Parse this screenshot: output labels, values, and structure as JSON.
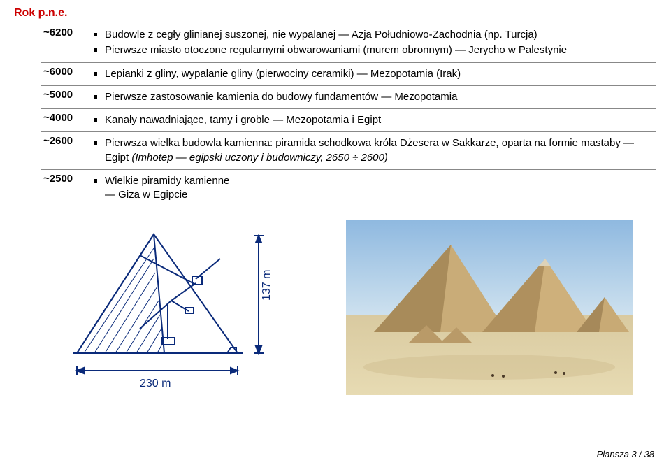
{
  "title": "Rok p.n.e.",
  "rows": [
    {
      "year": "~6200",
      "items": [
        "Budowle z cegły glinianej suszonej, nie wypalanej — Azja Południowo-Zachodnia (np. Turcja)",
        "Pierwsze miasto otoczone regularnymi obwarowaniami (murem obronnym) — Jerycho w Palestynie"
      ]
    },
    {
      "year": "~6000",
      "items": [
        "Lepianki z gliny, wypalanie gliny (pierwociny ceramiki) — Mezopotamia (Irak)"
      ]
    },
    {
      "year": "~5000",
      "items": [
        "Pierwsze zastosowanie kamienia do budowy fundamentów — Mezopotamia"
      ]
    },
    {
      "year": "~4000",
      "items": [
        "Kanały nawadniające, tamy i groble — Mezopotamia i Egipt"
      ]
    },
    {
      "year": "~2600",
      "items": [
        "Pierwsza wielka budowla kamienna: piramida schodkowa króla Dżesera w Sakkarze, oparta na formie mastaby — Egipt <span class=\"italic\">(Imhotep — egipski uczony i budowniczy, 2650 ÷ 2600)</span>"
      ]
    },
    {
      "year": "~2500",
      "items": [
        "Wielkie piramidy kamienne<br>— Giza w Egipcie"
      ]
    }
  ],
  "diagram": {
    "height_label": "137 m",
    "width_label": "230 m",
    "stroke": "#0a2a7a",
    "stroke_width": 2,
    "text_color": "#0a2a7a",
    "label_fontsize": 16
  },
  "photo": {
    "sky_color_top": "#9fc4e8",
    "sand_color": "#dccfa2",
    "pyramid_light": "#d4b57a",
    "pyramid_shade": "#a88b5a"
  },
  "footer": "Plansza 3 / 38"
}
